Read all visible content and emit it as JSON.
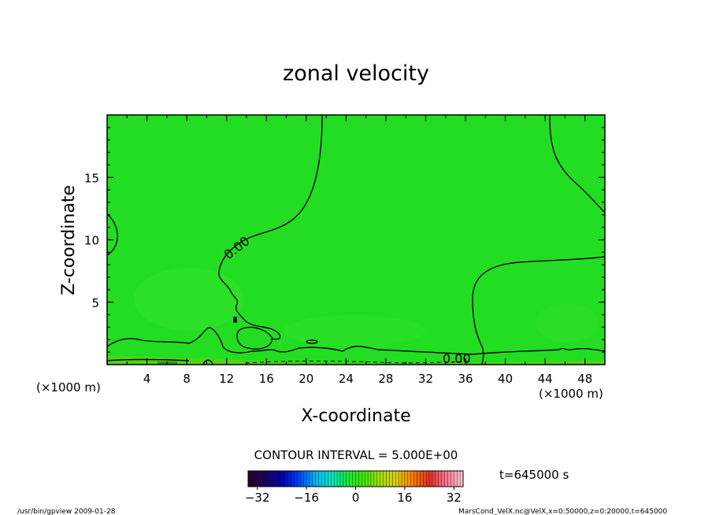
{
  "chart_data": {
    "type": "heatmap",
    "title": "zonal velocity",
    "xlabel": "X-coordinate",
    "ylabel": "Z-coordinate",
    "x_unit_left": "(×1000 m)",
    "x_unit_right": "(×1000 m)",
    "xlim": [
      0,
      50
    ],
    "ylim": [
      0,
      20
    ],
    "x_ticks": [
      4,
      8,
      12,
      16,
      20,
      24,
      28,
      32,
      36,
      40,
      44,
      48
    ],
    "y_ticks": [
      5,
      10,
      15
    ],
    "contour_interval_text": "CONTOUR INTERVAL = 5.000E+00",
    "contour_labels": [
      {
        "text": "0.00",
        "x": 13.6,
        "z": 8.7
      },
      {
        "text": "0.00",
        "x": 34.5,
        "z": 0.5
      }
    ],
    "colorbar": {
      "range": [
        -35,
        35
      ],
      "ticks": [
        -32,
        -16,
        0,
        16,
        32
      ],
      "colors": [
        "#2a0033",
        "#1a0060",
        "#0000b4",
        "#0040ff",
        "#00b0ff",
        "#00e8c0",
        "#20e840",
        "#40e800",
        "#a0e000",
        "#e0d000",
        "#ff8000",
        "#e03020",
        "#ff7090",
        "#ffc0d0"
      ]
    },
    "time_text": "t=645000 s",
    "field_color": "#22dd22",
    "grid": false
  },
  "footer": {
    "left": "/usr/bin/gpview   2009-01-28",
    "right": "MarsCond_VelX.nc@VelX,x=0:50000,z=0:20000,t=645000"
  }
}
